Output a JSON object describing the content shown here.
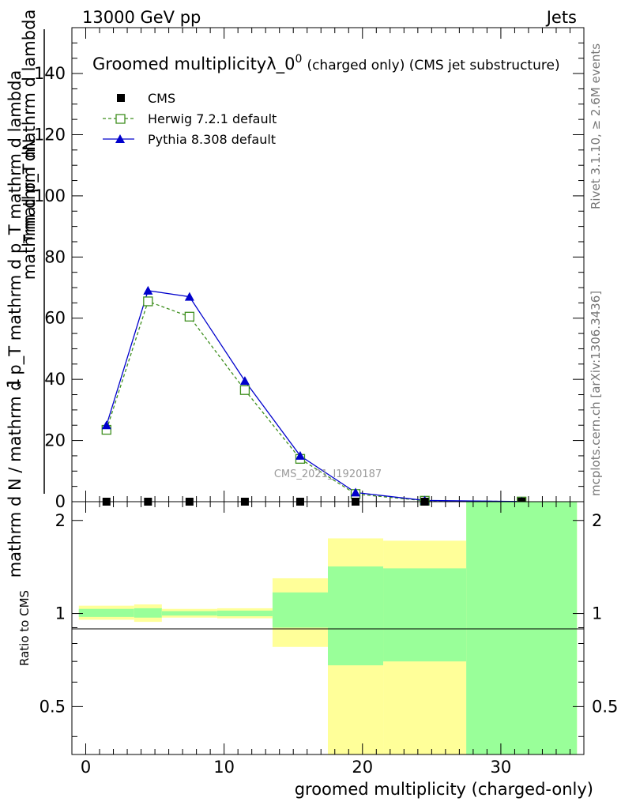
{
  "header": {
    "energy_label": "13000 GeV pp",
    "process_label": "Jets"
  },
  "side_labels": {
    "rivet": "Rivet 3.1.10, ≥ 2.6M events",
    "site": "mcplots.cern.ch [arXiv:1306.3436]"
  },
  "watermark": "CMS_2021_I1920187",
  "chart_data": [
    {
      "type": "line",
      "title_main": "Groomed multiplicityλ_0",
      "title_sup": "0",
      "title_note": "(charged only) (CMS jet substructure)",
      "ylabel_top": "mathrm dN",
      "ylabel_top2": "mathrm d p_T mathrm d lambda",
      "ylabel_bottom": "mathrm d N / mathrm d p_T mathrm d p_T mathrm d lambda",
      "ylabel_one": "1",
      "ylabel_sub": "T",
      "xlim": [
        -1,
        36
      ],
      "ylim": [
        0,
        155
      ],
      "yticks": [
        0,
        20,
        40,
        60,
        80,
        100,
        120,
        140
      ],
      "ytick_labels": [
        "0",
        "20",
        "40",
        "60",
        "80",
        "100",
        "120",
        "140"
      ],
      "legend": [
        {
          "name": "CMS",
          "color": "#000000",
          "marker": "square-filled"
        },
        {
          "name": "Herwig 7.2.1 default",
          "color": "#3f8f1f",
          "marker": "square-open",
          "dash": true
        },
        {
          "name": "Pythia 8.308 default",
          "color": "#0000cc",
          "marker": "triangle-filled"
        }
      ],
      "series": [
        {
          "name": "CMS",
          "x": [
            1.5,
            4.5,
            7.5,
            11.5,
            15.5,
            19.5,
            24.5,
            31.5
          ],
          "values": [
            0,
            0,
            0,
            0,
            0,
            0,
            0,
            0
          ]
        },
        {
          "name": "Herwig 7.2.1 default",
          "x": [
            1.5,
            4.5,
            7.5,
            11.5,
            15.5,
            19.5,
            24.5,
            31.5
          ],
          "values": [
            23.5,
            65.5,
            60.5,
            36.5,
            14.0,
            2.5,
            0.3,
            0.05
          ]
        },
        {
          "name": "Pythia 8.308 default",
          "x": [
            1.5,
            4.5,
            7.5,
            11.5,
            15.5,
            19.5,
            24.5,
            31.5
          ],
          "values": [
            25.0,
            69.0,
            67.0,
            39.5,
            15.0,
            3.0,
            0.4,
            0.05
          ]
        }
      ]
    },
    {
      "type": "area",
      "ylabel": "Ratio to CMS",
      "xlabel": "groomed multiplicity (charged-only)",
      "xlim": [
        -1,
        36
      ],
      "ylim": [
        0.35,
        2.3
      ],
      "yticks": [
        0.5,
        1,
        2
      ],
      "ytick_labels": [
        "0.5",
        "1",
        "2"
      ],
      "xticks": [
        0,
        10,
        20,
        30
      ],
      "xtick_labels": [
        "0",
        "10",
        "20",
        "30"
      ],
      "bins": [
        {
          "low": -0.5,
          "high": 3.5,
          "yellow": [
            0.955,
            1.06
          ],
          "green": [
            0.975,
            1.035
          ]
        },
        {
          "low": 3.5,
          "high": 5.5,
          "yellow": [
            0.94,
            1.07
          ],
          "green": [
            0.97,
            1.04
          ]
        },
        {
          "low": 5.5,
          "high": 9.5,
          "yellow": [
            0.97,
            1.035
          ],
          "green": [
            0.985,
            1.018
          ]
        },
        {
          "low": 9.5,
          "high": 13.5,
          "yellow": [
            0.965,
            1.04
          ],
          "green": [
            0.98,
            1.022
          ]
        },
        {
          "low": 13.5,
          "high": 17.5,
          "yellow": [
            0.78,
            1.3
          ],
          "green": [
            0.9,
            1.17
          ]
        },
        {
          "low": 17.5,
          "high": 21.5,
          "yellow": [
            0.35,
            1.75
          ],
          "green": [
            0.68,
            1.42
          ]
        },
        {
          "low": 21.5,
          "high": 27.5,
          "yellow": [
            0.35,
            1.72
          ],
          "green": [
            0.7,
            1.4
          ]
        },
        {
          "low": 27.5,
          "high": 35.5,
          "yellow": [
            0.35,
            2.3
          ],
          "green": [
            0.35,
            2.3
          ]
        }
      ]
    }
  ]
}
